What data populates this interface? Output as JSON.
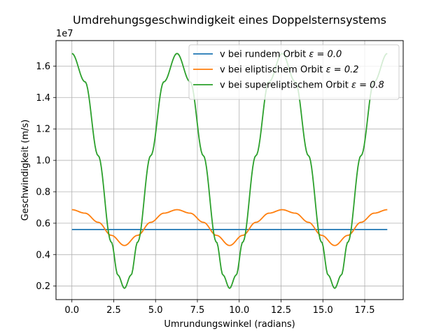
{
  "chart_data": {
    "type": "line",
    "title": "Umdrehungsgeschwindigkeit eines Doppelsternsystems",
    "xlabel": "Umrundungswinkel (radians)",
    "ylabel": "Geschwindigkeit (m/s)",
    "y_offset_label": "1e7",
    "y_scale": 10000000,
    "xlim": [
      -0.95,
      19.8
    ],
    "ylim": [
      1140000,
      17620000
    ],
    "xticks": [
      0.0,
      2.5,
      5.0,
      7.5,
      10.0,
      12.5,
      15.0,
      17.5
    ],
    "xtick_labels": [
      "0.0",
      "2.5",
      "5.0",
      "7.5",
      "10.0",
      "12.5",
      "15.0",
      "17.5"
    ],
    "yticks": [
      2000000,
      4000000,
      6000000,
      8000000,
      10000000,
      12000000,
      14000000,
      16000000
    ],
    "ytick_labels": [
      "0.2",
      "0.4",
      "0.6",
      "0.8",
      "1.0",
      "1.2",
      "1.4",
      "1.6"
    ],
    "grid": true,
    "legend_position": "top-right",
    "colors": [
      "#1f77b4",
      "#ff7f0e",
      "#2ca02c"
    ],
    "series": [
      {
        "name": "v bei rundem Orbit ε = 0.0",
        "legend_prefix": "v bei rundem Orbit ",
        "legend_math": "ε = 0.0",
        "color": "#1f77b4",
        "x": [
          0.0,
          0.785,
          1.571,
          2.356,
          3.142,
          3.927,
          4.712,
          5.498,
          6.283,
          7.069,
          7.854,
          8.639,
          9.425,
          10.21,
          10.996,
          11.781,
          12.566,
          13.352,
          14.137,
          14.923,
          15.708,
          16.493,
          17.279,
          18.064,
          18.85
        ],
        "y": [
          5600000,
          5600000,
          5600000,
          5600000,
          5600000,
          5600000,
          5600000,
          5600000,
          5600000,
          5600000,
          5600000,
          5600000,
          5600000,
          5600000,
          5600000,
          5600000,
          5600000,
          5600000,
          5600000,
          5600000,
          5600000,
          5600000,
          5600000,
          5600000,
          5600000
        ]
      },
      {
        "name": "v bei eliptischem Orbit ε = 0.2",
        "legend_prefix": "v bei eliptischem Orbit ",
        "legend_math": "ε = 0.2",
        "color": "#ff7f0e",
        "x": [
          0.0,
          0.785,
          1.571,
          2.356,
          3.142,
          3.927,
          4.712,
          5.498,
          6.283,
          7.069,
          7.854,
          8.639,
          9.425,
          10.21,
          10.996,
          11.781,
          12.566,
          13.352,
          14.137,
          14.923,
          15.708,
          16.493,
          17.279,
          18.064,
          18.85
        ],
        "y": [
          6860000,
          6640000,
          6060000,
          5230000,
          4580000,
          5230000,
          6060000,
          6640000,
          6860000,
          6640000,
          6060000,
          5230000,
          4580000,
          5230000,
          6060000,
          6640000,
          6860000,
          6640000,
          6060000,
          5230000,
          4580000,
          5230000,
          6060000,
          6640000,
          6860000
        ]
      },
      {
        "name": "v bei supereliptischem Orbit ε = 0.8",
        "legend_prefix": "v bei supereliptischem Orbit ",
        "legend_math": "ε = 0.8",
        "color": "#2ca02c",
        "x": [
          0.0,
          0.785,
          1.571,
          2.356,
          2.75,
          3.142,
          3.534,
          3.927,
          4.712,
          5.498,
          6.283,
          7.069,
          7.854,
          8.639,
          9.032,
          9.425,
          9.817,
          10.21,
          10.996,
          11.781,
          12.566,
          13.352,
          14.137,
          14.923,
          15.315,
          15.708,
          16.1,
          16.493,
          17.279,
          18.064,
          18.85
        ],
        "y": [
          16800000,
          15000000,
          10300000,
          4800000,
          2700000,
          1860000,
          2700000,
          4800000,
          10300000,
          15000000,
          16800000,
          15000000,
          10300000,
          4800000,
          2700000,
          1860000,
          2700000,
          4800000,
          10300000,
          15000000,
          16800000,
          15000000,
          10300000,
          4800000,
          2700000,
          1860000,
          2700000,
          4800000,
          10300000,
          15000000,
          16800000
        ]
      }
    ]
  }
}
